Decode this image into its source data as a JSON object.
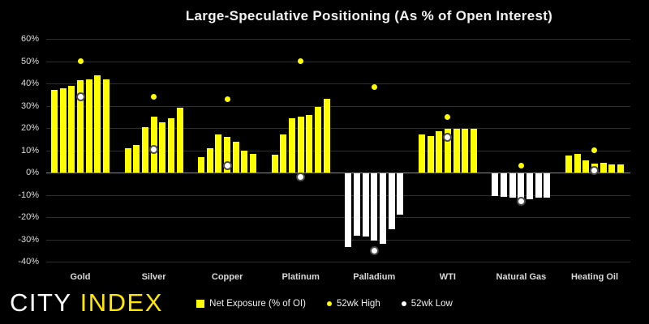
{
  "title": "Large-Speculative Positioning (As % of Open Interest)",
  "logo": {
    "text_primary": "CITY",
    "text_secondary": "INDEX"
  },
  "colors": {
    "background": "#000000",
    "bar_positive": "#FFFF00",
    "bar_negative": "#FFFFFF",
    "high_dot": "#FFFF00",
    "low_dot": "#FFFFFF",
    "low_dot_ring": "#4a4a4a",
    "gridline": "#2e2e2e",
    "zero_line": "#8a8a8a",
    "text": "#e8e8e8",
    "logo_secondary": "#FFE600"
  },
  "legend": {
    "items": [
      {
        "label": "Net Exposure (% of OI)",
        "marker": "square",
        "color": "#FFFF00"
      },
      {
        "label": "52wk High",
        "marker": "circle",
        "color": "#FFFF00"
      },
      {
        "label": "52wk Low",
        "marker": "circle",
        "color": "#FFFFFF"
      }
    ]
  },
  "chart_data": {
    "type": "bar",
    "title": "Large-Speculative Positioning (As % of Open Interest)",
    "xlabel": "",
    "ylabel": "",
    "ylim": [
      -40,
      60
    ],
    "ytick_step": 10,
    "yticks": [
      "60%",
      "50%",
      "40%",
      "30%",
      "20%",
      "10%",
      "0%",
      "-10%",
      "-20%",
      "-30%",
      "-40%"
    ],
    "grid": "horizontal",
    "legend_position": "bottom",
    "bars_per_group": 7,
    "categories": [
      "Gold",
      "Silver",
      "Copper",
      "Platinum",
      "Palladium",
      "WTI",
      "Natural Gas",
      "Heating Oil"
    ],
    "series": [
      {
        "name": "Net Exposure (% of OI)",
        "type": "bar",
        "color_positive": "#FFFF00",
        "color_negative": "#FFFFFF",
        "values": {
          "Gold": [
            37,
            38,
            39,
            41.5,
            42,
            43.5,
            42
          ],
          "Silver": [
            11,
            12.5,
            20.5,
            25,
            22.5,
            24.5,
            29
          ],
          "Copper": [
            7,
            11,
            17,
            16,
            14,
            10,
            8.5
          ],
          "Platinum": [
            8,
            17,
            24.5,
            25,
            26,
            29.5,
            33
          ],
          "Palladium": [
            -33,
            -28,
            -28.5,
            -30,
            -31.5,
            -25,
            -18.5
          ],
          "WTI": [
            17,
            16.5,
            18.5,
            19.5,
            19.5,
            19.5,
            19.5
          ],
          "Natural Gas": [
            -10,
            -10.5,
            -11,
            -12,
            -11.5,
            -11,
            -11
          ],
          "Heating Oil": [
            7.5,
            8.5,
            5.5,
            4,
            4.5,
            3.5,
            3.5
          ]
        }
      },
      {
        "name": "52wk High",
        "type": "point",
        "color": "#FFFF00",
        "values": {
          "Gold": 50,
          "Silver": 34,
          "Copper": 33,
          "Platinum": 50,
          "Palladium": 38.5,
          "WTI": 25,
          "Natural Gas": 3,
          "Heating Oil": 10
        }
      },
      {
        "name": "52wk Low",
        "type": "point",
        "color": "#FFFFFF",
        "values": {
          "Gold": 34,
          "Silver": 10.5,
          "Copper": 3,
          "Platinum": -2,
          "Palladium": -35,
          "WTI": 16,
          "Natural Gas": -13,
          "Heating Oil": 1
        }
      }
    ]
  }
}
